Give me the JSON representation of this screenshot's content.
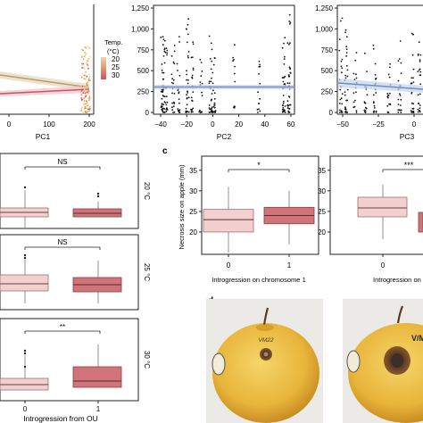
{
  "figure": {
    "pc1": {
      "xlabel": "PC1",
      "xticks": [
        "0",
        "100",
        "200"
      ],
      "legend_title": "Temp.\n(°C)",
      "legend_items": [
        {
          "label": "20",
          "color": "#d8c49a"
        },
        {
          "label": "25",
          "color": "#d99a6b"
        },
        {
          "label": "30",
          "color": "#c9536b"
        }
      ]
    },
    "pc2": {
      "xlabel": "PC2",
      "xticks": [
        "−40",
        "−20",
        "0",
        "20",
        "40",
        "60"
      ],
      "yticks": [
        "0",
        "250",
        "500",
        "750",
        "1,000",
        "1,250"
      ]
    },
    "pc3": {
      "xlabel": "PC3",
      "xticks": [
        "−50",
        "−25",
        "0"
      ],
      "yticks": [
        "0",
        "250",
        "500",
        "750",
        "1,000",
        "1,250"
      ]
    },
    "temp_panels": {
      "xlabel": "Introgression from OU",
      "xticks": [
        "0",
        "1"
      ],
      "rows": [
        {
          "temp": "20 °C",
          "sig": "NS"
        },
        {
          "temp": "25 °C",
          "sig": "NS"
        },
        {
          "temp": "30 °C",
          "sig": "**"
        }
      ]
    },
    "panel_c": {
      "letter": "c",
      "ylabel": "Necrosis size on apple (mm)",
      "yticks": [
        "20",
        "25",
        "30",
        "35"
      ],
      "chr1": {
        "xlabel": "Introgression on chromosome 1",
        "sig": "*",
        "xticks": [
          "0",
          "1"
        ]
      },
      "chr_cut": {
        "xlabel": "Introgression on ch",
        "sig": "***",
        "xticks": [
          "0"
        ],
        "yticks": [
          "20",
          "25",
          "30",
          "35"
        ]
      }
    },
    "panel_d": {
      "letter": "d",
      "apple_text": "V/M",
      "apple1_label": "VM22"
    },
    "colors": {
      "light_box": "#f2d0d0",
      "dark_box": "#d0747a",
      "line": "#6a8fc8"
    }
  },
  "chart_data": [
    {
      "type": "scatter",
      "title": "",
      "xlabel": "PC2",
      "ylabel": "",
      "xlim": [
        -45,
        65
      ],
      "ylim": [
        0,
        1250
      ],
      "note": "dense vertical point clusters at PC2 ≈ -37, -30, -20, -15, -5, 0, 20, 38, 55, 60; flat regression line at ≈ 290"
    },
    {
      "type": "scatter",
      "xlabel": "PC3",
      "xlim": [
        -55,
        5
      ],
      "ylim": [
        0,
        1250
      ],
      "note": "regression line from ≈ 330 at PC3 = -50 to ≈ 250 at PC3 = 0"
    },
    {
      "type": "box",
      "categories": [
        "0",
        "1"
      ],
      "xlabel": "Introgression on chromosome 1",
      "ylabel": "Necrosis size on apple (mm)",
      "ylim": [
        15,
        38
      ],
      "series": [
        {
          "name": "0",
          "q1": 20,
          "median": 23,
          "q3": 25.5,
          "min": 15,
          "max": 31
        },
        {
          "name": "1",
          "q1": 22,
          "median": 24,
          "q3": 26,
          "min": 17,
          "max": 30
        }
      ]
    }
  ]
}
